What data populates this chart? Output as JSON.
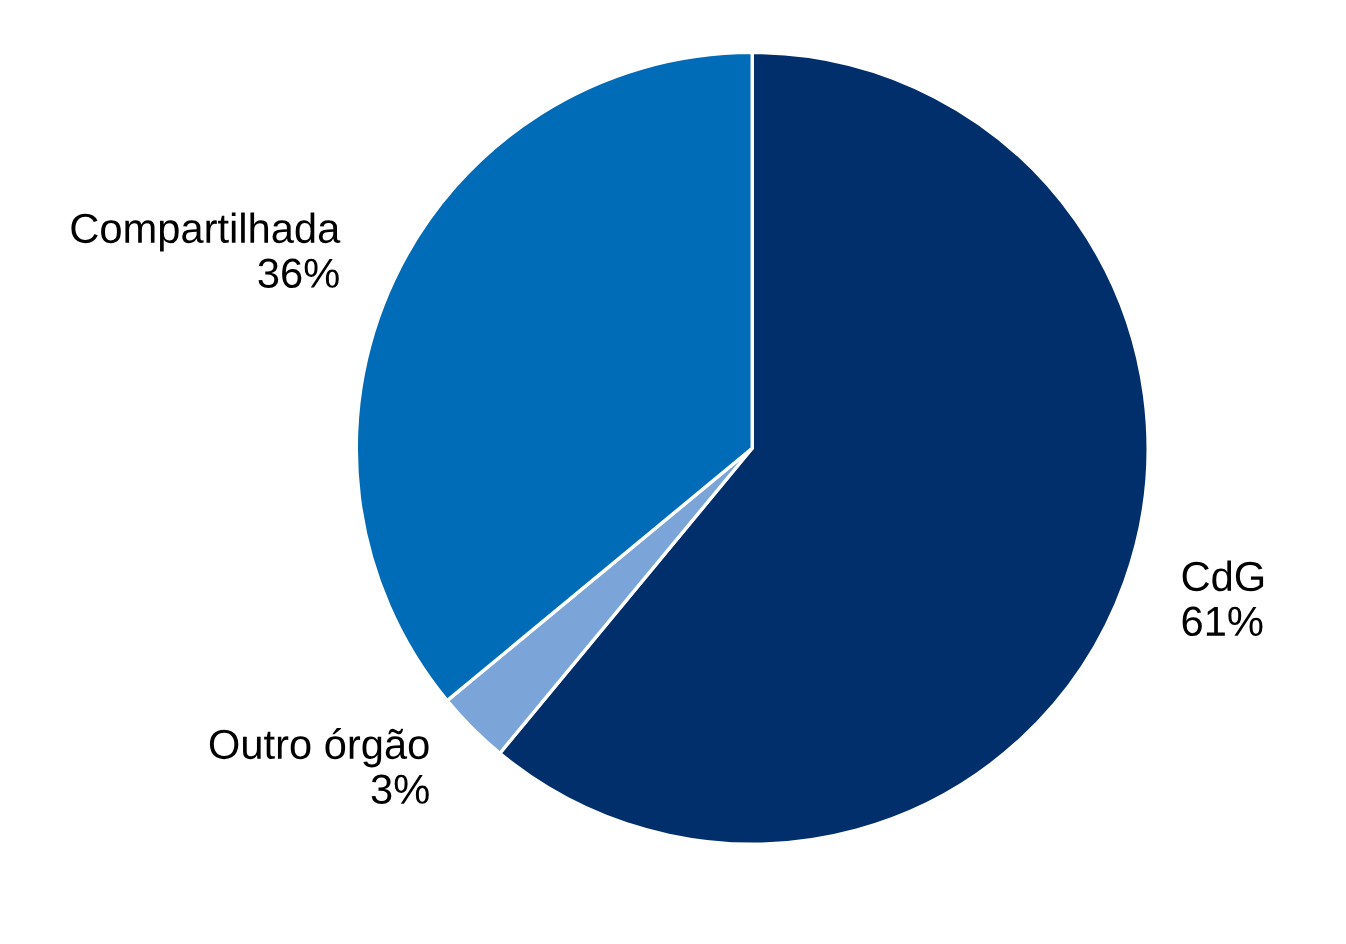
{
  "chart_data": {
    "type": "pie",
    "categories": [
      "CdG",
      "Outro órgão",
      "Compartilhada"
    ],
    "values": [
      61,
      3,
      36
    ],
    "value_labels": [
      "61%",
      "3%",
      "36%"
    ],
    "colors": [
      "#002f6c",
      "#7ba4d8",
      "#006bb6"
    ]
  }
}
